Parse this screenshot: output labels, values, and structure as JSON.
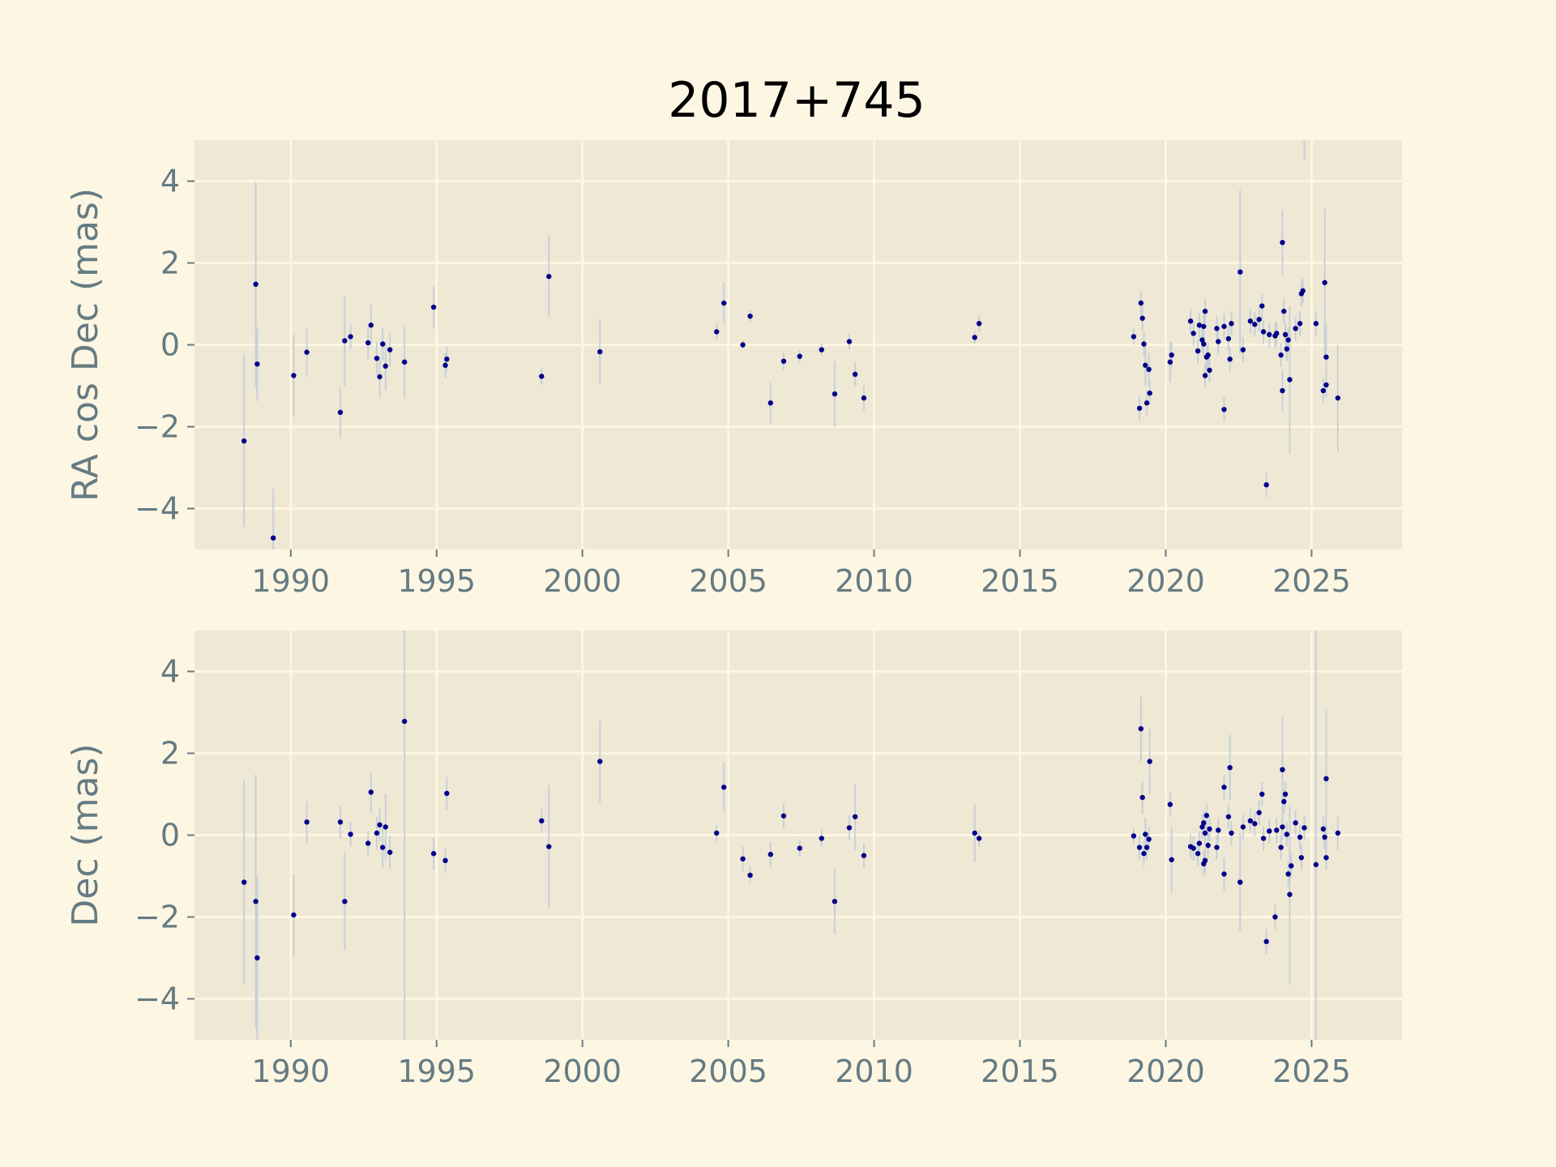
{
  "figure": {
    "title": "2017+745",
    "background": "#fdf6e3",
    "axes_background": "#eee8d5",
    "grid_color": "#fdf6e3",
    "tick_label_color": "#657b83",
    "marker_color": "#00008b",
    "errorbar_color": "#c8d0d8"
  },
  "chart_data": [
    {
      "type": "scatter",
      "ylabel": "RA cos Dec (mas)",
      "xlim": [
        1986.7,
        2028.1
      ],
      "ylim": [
        -5,
        5
      ],
      "xticks": [
        1990,
        1995,
        2000,
        2005,
        2010,
        2015,
        2020,
        2025
      ],
      "xtick_labels": [
        "1990",
        "1995",
        "2000",
        "2005",
        "2010",
        "2015",
        "2020",
        "2025"
      ],
      "yticks": [
        -4,
        -2,
        0,
        2,
        4
      ],
      "ytick_labels": [
        "−4",
        "−2",
        "0",
        "2",
        "4"
      ],
      "grid": true,
      "points": [
        [
          1988.4,
          -2.35,
          2.1
        ],
        [
          1988.8,
          1.48,
          2.5
        ],
        [
          1988.85,
          -0.47,
          0.9
        ],
        [
          1989.4,
          -4.72,
          1.2
        ],
        [
          1990.1,
          -0.75,
          1.0
        ],
        [
          1990.55,
          -0.18,
          0.6
        ],
        [
          1991.7,
          -1.65,
          0.6
        ],
        [
          1991.85,
          0.1,
          1.1
        ],
        [
          1992.05,
          0.2,
          0.3
        ],
        [
          1992.65,
          0.05,
          0.4
        ],
        [
          1992.75,
          0.48,
          0.5
        ],
        [
          1992.95,
          -0.33,
          0.4
        ],
        [
          1993.05,
          -0.78,
          0.5
        ],
        [
          1993.15,
          0.02,
          0.4
        ],
        [
          1993.25,
          -0.52,
          0.6
        ],
        [
          1993.4,
          -0.12,
          0.4
        ],
        [
          1993.9,
          -0.42,
          0.9
        ],
        [
          1994.9,
          0.92,
          0.5
        ],
        [
          1995.3,
          -0.5,
          0.3
        ],
        [
          1995.35,
          -0.35,
          0.3
        ],
        [
          1998.6,
          -0.77,
          0.2
        ],
        [
          1998.85,
          1.67,
          1.0
        ],
        [
          2000.6,
          -0.17,
          0.8
        ],
        [
          2004.6,
          0.32,
          0.2
        ],
        [
          2004.85,
          1.02,
          0.5
        ],
        [
          2005.5,
          0.0,
          0.1
        ],
        [
          2005.75,
          0.7,
          0.15
        ],
        [
          2006.45,
          -1.42,
          0.5
        ],
        [
          2006.9,
          -0.4,
          0.2
        ],
        [
          2007.45,
          -0.28,
          0.15
        ],
        [
          2008.2,
          -0.12,
          0.15
        ],
        [
          2008.65,
          -1.2,
          0.8
        ],
        [
          2009.15,
          0.08,
          0.2
        ],
        [
          2009.35,
          -0.72,
          0.3
        ],
        [
          2009.65,
          -1.3,
          0.3
        ],
        [
          2013.45,
          0.18,
          0.15
        ],
        [
          2013.6,
          0.52,
          0.2
        ],
        [
          2018.9,
          0.2,
          0.2
        ],
        [
          2019.1,
          -1.55,
          0.3
        ],
        [
          2019.15,
          1.02,
          0.3
        ],
        [
          2019.2,
          0.65,
          0.3
        ],
        [
          2019.25,
          0.02,
          0.3
        ],
        [
          2019.3,
          -0.5,
          0.5
        ],
        [
          2019.35,
          -1.42,
          0.3
        ],
        [
          2019.42,
          -0.6,
          0.4
        ],
        [
          2019.45,
          -1.18,
          0.3
        ],
        [
          2020.15,
          -0.42,
          0.5
        ],
        [
          2020.2,
          -0.25,
          0.3
        ],
        [
          2020.85,
          0.58,
          0.3
        ],
        [
          2020.95,
          0.28,
          0.3
        ],
        [
          2021.1,
          -0.15,
          0.3
        ],
        [
          2021.15,
          0.48,
          0.3
        ],
        [
          2021.25,
          0.12,
          0.3
        ],
        [
          2021.3,
          0.02,
          0.3
        ],
        [
          2021.3,
          0.45,
          0.3
        ],
        [
          2021.35,
          0.82,
          0.3
        ],
        [
          2021.35,
          -0.75,
          0.3
        ],
        [
          2021.4,
          -0.3,
          0.3
        ],
        [
          2021.45,
          -0.25,
          0.3
        ],
        [
          2021.5,
          -0.62,
          0.3
        ],
        [
          2021.75,
          0.4,
          0.3
        ],
        [
          2021.8,
          0.08,
          0.3
        ],
        [
          2022.0,
          0.45,
          0.3
        ],
        [
          2022.0,
          -1.58,
          0.3
        ],
        [
          2022.15,
          0.15,
          0.3
        ],
        [
          2022.2,
          -0.35,
          0.3
        ],
        [
          2022.25,
          0.52,
          0.3
        ],
        [
          2022.55,
          1.78,
          2.0
        ],
        [
          2022.65,
          -0.12,
          0.3
        ],
        [
          2022.9,
          0.58,
          0.3
        ],
        [
          2023.05,
          0.5,
          0.3
        ],
        [
          2023.2,
          0.62,
          0.3
        ],
        [
          2023.3,
          0.95,
          0.3
        ],
        [
          2023.35,
          0.32,
          0.3
        ],
        [
          2023.45,
          -3.42,
          0.3
        ],
        [
          2023.55,
          0.25,
          0.3
        ],
        [
          2023.75,
          0.22,
          0.3
        ],
        [
          2023.8,
          0.28,
          0.3
        ],
        [
          2023.95,
          -0.25,
          0.3
        ],
        [
          2024.0,
          -1.12,
          0.5
        ],
        [
          2024.0,
          2.5,
          0.8
        ],
        [
          2024.05,
          0.82,
          0.3
        ],
        [
          2024.1,
          0.25,
          0.3
        ],
        [
          2024.15,
          -0.1,
          0.3
        ],
        [
          2024.2,
          0.12,
          0.3
        ],
        [
          2024.25,
          -0.85,
          1.8
        ],
        [
          2024.45,
          0.4,
          0.3
        ],
        [
          2024.6,
          0.52,
          0.3
        ],
        [
          2024.65,
          1.25,
          0.3
        ],
        [
          2024.7,
          1.32,
          0.3
        ],
        [
          2024.75,
          5.3,
          0.8
        ],
        [
          2025.15,
          0.52,
          0.3
        ],
        [
          2025.4,
          -1.12,
          0.3
        ],
        [
          2025.45,
          1.52,
          1.8
        ],
        [
          2025.5,
          -0.3,
          0.8
        ],
        [
          2025.5,
          -0.98,
          0.3
        ],
        [
          2025.9,
          -1.3,
          1.3
        ]
      ]
    },
    {
      "type": "scatter",
      "ylabel": "Dec (mas)",
      "xlim": [
        1986.7,
        2028.1
      ],
      "ylim": [
        -5,
        5
      ],
      "xticks": [
        1990,
        1995,
        2000,
        2005,
        2010,
        2015,
        2020,
        2025
      ],
      "xtick_labels": [
        "1990",
        "1995",
        "2000",
        "2005",
        "2010",
        "2015",
        "2020",
        "2025"
      ],
      "yticks": [
        -4,
        -2,
        0,
        2,
        4
      ],
      "ytick_labels": [
        "−4",
        "−2",
        "0",
        "2",
        "4"
      ],
      "grid": true,
      "points": [
        [
          1988.4,
          -1.15,
          2.5
        ],
        [
          1988.8,
          -1.62,
          3.1
        ],
        [
          1988.85,
          -3.0,
          2.0
        ],
        [
          1990.1,
          -1.95,
          1.0
        ],
        [
          1990.55,
          0.32,
          0.5
        ],
        [
          1991.7,
          0.32,
          0.4
        ],
        [
          1991.85,
          -1.62,
          1.2
        ],
        [
          1992.05,
          0.02,
          0.3
        ],
        [
          1992.65,
          -0.2,
          0.3
        ],
        [
          1992.75,
          1.05,
          0.5
        ],
        [
          1992.95,
          0.05,
          0.4
        ],
        [
          1993.05,
          0.25,
          0.4
        ],
        [
          1993.15,
          -0.3,
          0.5
        ],
        [
          1993.25,
          0.2,
          0.8
        ],
        [
          1993.4,
          -0.42,
          0.4
        ],
        [
          1993.9,
          2.78,
          7.8
        ],
        [
          1994.9,
          -0.45,
          0.4
        ],
        [
          1995.3,
          -0.62,
          0.3
        ],
        [
          1995.35,
          1.02,
          0.4
        ],
        [
          1998.6,
          0.35,
          0.3
        ],
        [
          1998.85,
          -0.28,
          1.5
        ],
        [
          2000.6,
          1.8,
          1.0
        ],
        [
          2004.6,
          0.05,
          0.2
        ],
        [
          2004.85,
          1.17,
          0.6
        ],
        [
          2005.5,
          -0.58,
          0.3
        ],
        [
          2005.75,
          -0.98,
          0.2
        ],
        [
          2006.45,
          -0.47,
          0.3
        ],
        [
          2006.9,
          0.47,
          0.3
        ],
        [
          2007.45,
          -0.32,
          0.2
        ],
        [
          2008.2,
          -0.08,
          0.2
        ],
        [
          2008.65,
          -1.62,
          0.8
        ],
        [
          2009.15,
          0.18,
          0.3
        ],
        [
          2009.35,
          0.45,
          0.8
        ],
        [
          2009.65,
          -0.5,
          0.3
        ],
        [
          2013.45,
          0.05,
          0.7
        ],
        [
          2013.6,
          -0.08,
          0.2
        ],
        [
          2018.9,
          -0.02,
          0.2
        ],
        [
          2019.1,
          -0.3,
          0.3
        ],
        [
          2019.15,
          2.6,
          0.8
        ],
        [
          2019.2,
          0.92,
          0.4
        ],
        [
          2019.25,
          -0.45,
          0.3
        ],
        [
          2019.3,
          0.02,
          0.4
        ],
        [
          2019.35,
          -0.3,
          0.3
        ],
        [
          2019.42,
          -0.1,
          0.3
        ],
        [
          2019.45,
          1.8,
          0.8
        ],
        [
          2020.15,
          0.75,
          0.3
        ],
        [
          2020.2,
          -0.6,
          0.8
        ],
        [
          2020.85,
          -0.28,
          0.3
        ],
        [
          2020.95,
          -0.32,
          0.3
        ],
        [
          2021.1,
          -0.45,
          0.3
        ],
        [
          2021.15,
          -0.2,
          0.3
        ],
        [
          2021.25,
          0.2,
          0.3
        ],
        [
          2021.3,
          -0.7,
          0.3
        ],
        [
          2021.3,
          0.3,
          0.3
        ],
        [
          2021.35,
          -0.62,
          0.3
        ],
        [
          2021.35,
          0.05,
          0.3
        ],
        [
          2021.4,
          0.48,
          0.3
        ],
        [
          2021.45,
          -0.25,
          0.3
        ],
        [
          2021.5,
          0.15,
          0.3
        ],
        [
          2021.75,
          -0.3,
          0.3
        ],
        [
          2021.8,
          0.12,
          0.3
        ],
        [
          2022.0,
          1.17,
          0.3
        ],
        [
          2022.0,
          -0.95,
          0.4
        ],
        [
          2022.15,
          0.45,
          0.3
        ],
        [
          2022.2,
          1.65,
          0.8
        ],
        [
          2022.25,
          0.05,
          0.3
        ],
        [
          2022.55,
          -1.15,
          1.2
        ],
        [
          2022.65,
          0.2,
          0.3
        ],
        [
          2022.9,
          0.35,
          0.3
        ],
        [
          2023.05,
          0.28,
          0.3
        ],
        [
          2023.2,
          0.55,
          0.3
        ],
        [
          2023.3,
          1.0,
          0.3
        ],
        [
          2023.35,
          -0.08,
          0.3
        ],
        [
          2023.45,
          -2.6,
          0.3
        ],
        [
          2023.55,
          0.1,
          0.3
        ],
        [
          2023.75,
          -2.0,
          0.3
        ],
        [
          2023.8,
          0.12,
          0.3
        ],
        [
          2023.95,
          -0.3,
          0.3
        ],
        [
          2024.0,
          1.6,
          1.3
        ],
        [
          2024.0,
          0.2,
          0.3
        ],
        [
          2024.05,
          0.82,
          0.3
        ],
        [
          2024.1,
          1.0,
          0.3
        ],
        [
          2024.15,
          0.02,
          0.3
        ],
        [
          2024.2,
          -0.95,
          0.3
        ],
        [
          2024.25,
          -1.45,
          2.2
        ],
        [
          2024.3,
          -0.75,
          0.3
        ],
        [
          2024.45,
          0.3,
          0.3
        ],
        [
          2024.6,
          -0.05,
          0.3
        ],
        [
          2024.65,
          -0.55,
          0.3
        ],
        [
          2024.75,
          0.18,
          0.3
        ],
        [
          2025.15,
          -0.72,
          6.0
        ],
        [
          2025.4,
          0.15,
          0.3
        ],
        [
          2025.45,
          -0.05,
          0.3
        ],
        [
          2025.5,
          1.38,
          1.7
        ],
        [
          2025.5,
          -0.55,
          0.3
        ],
        [
          2025.9,
          0.05,
          0.4
        ]
      ]
    }
  ]
}
